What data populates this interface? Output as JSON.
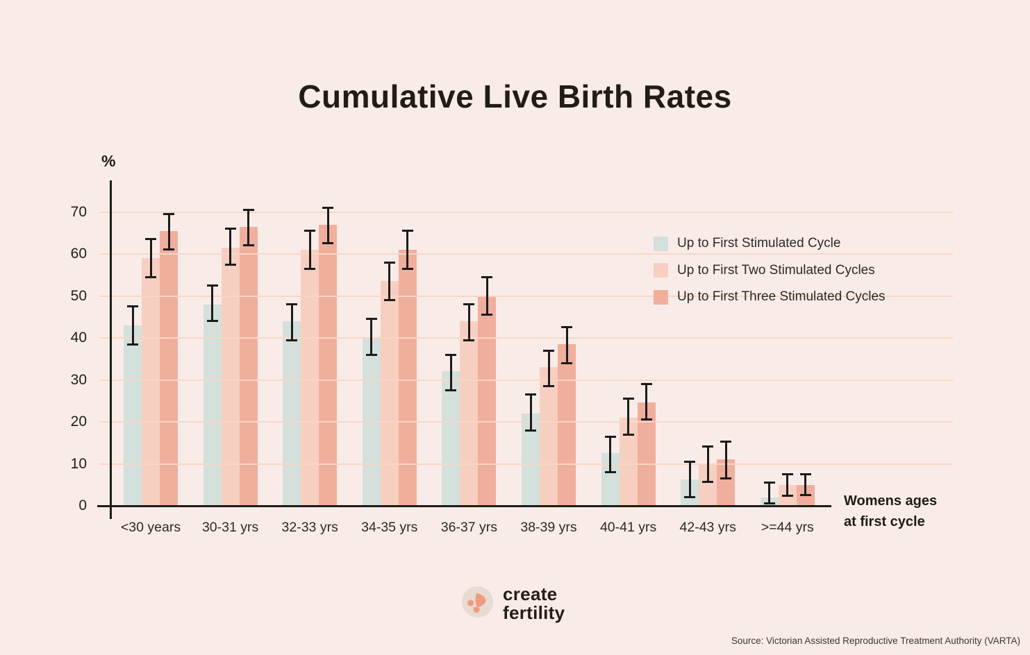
{
  "title": "Cumulative Live Birth Rates",
  "y_axis": {
    "unit_label": "%",
    "ticks": [
      0,
      10,
      20,
      30,
      40,
      50,
      60,
      70
    ]
  },
  "x_axis_title": {
    "line1": "Womens ages",
    "line2": "at first cycle"
  },
  "footer": {
    "logo_line1": "create",
    "logo_line2": "fertility",
    "source": "Source: Victorian Assisted Reproductive Treatment Authority (VARTA)"
  },
  "colors": {
    "background": "#f9ece8",
    "gridline": "#f8d6c5",
    "axis": "#1d1b19",
    "error_bar": "#1b1b1b",
    "title_text": "#221c18",
    "logo_circle": "#e9dad4",
    "logo_mark": "#ef9b82"
  },
  "chart_data": {
    "type": "bar",
    "title": "Cumulative Live Birth Rates",
    "xlabel": "Womens ages at first cycle",
    "ylabel": "%",
    "ylim": [
      0,
      75
    ],
    "yticks": [
      0,
      10,
      20,
      30,
      40,
      50,
      60,
      70
    ],
    "grid": "horizontal",
    "legend_position": "inside-top-right",
    "error_bars": true,
    "categories": [
      "<30 years",
      "30-31 yrs",
      "32-33 yrs",
      "34-35 yrs",
      "36-37 yrs",
      "38-39 yrs",
      "40-41 yrs",
      "42-43 yrs",
      ">=44 yrs"
    ],
    "series": [
      {
        "name": "Up to First Stimulated Cycle",
        "color": "#d3e0dc",
        "values": [
          43,
          48,
          44,
          40,
          32,
          22,
          12.5,
          6.2,
          2
        ],
        "ci_low": [
          38.5,
          44,
          39.5,
          36,
          27.5,
          18,
          8,
          2,
          0.5
        ],
        "ci_high": [
          47.5,
          52.5,
          48,
          44.5,
          36,
          26.5,
          16.5,
          10.5,
          5.5
        ]
      },
      {
        "name": "Up to First Two Stimulated Cycles",
        "color": "#f7cfc0",
        "values": [
          59,
          61.5,
          61,
          53.5,
          44,
          33,
          21,
          10,
          5
        ],
        "ci_low": [
          54.5,
          57.5,
          56.5,
          49,
          39.5,
          28.5,
          17,
          5.7,
          2.4
        ],
        "ci_high": [
          63.5,
          66,
          65.5,
          58,
          48,
          37,
          25.5,
          14.2,
          7.6
        ]
      },
      {
        "name": "Up to First Three Stimulated Cycles",
        "color": "#f0ae9d",
        "values": [
          65.5,
          66.5,
          67,
          61,
          50,
          38.5,
          24.7,
          11,
          5
        ],
        "ci_low": [
          61,
          62,
          62.5,
          56.5,
          45.5,
          34,
          20.5,
          6.6,
          2.5
        ],
        "ci_high": [
          69.5,
          70.5,
          71,
          65.5,
          54.5,
          42.5,
          29,
          15.3,
          7.5
        ]
      }
    ]
  }
}
